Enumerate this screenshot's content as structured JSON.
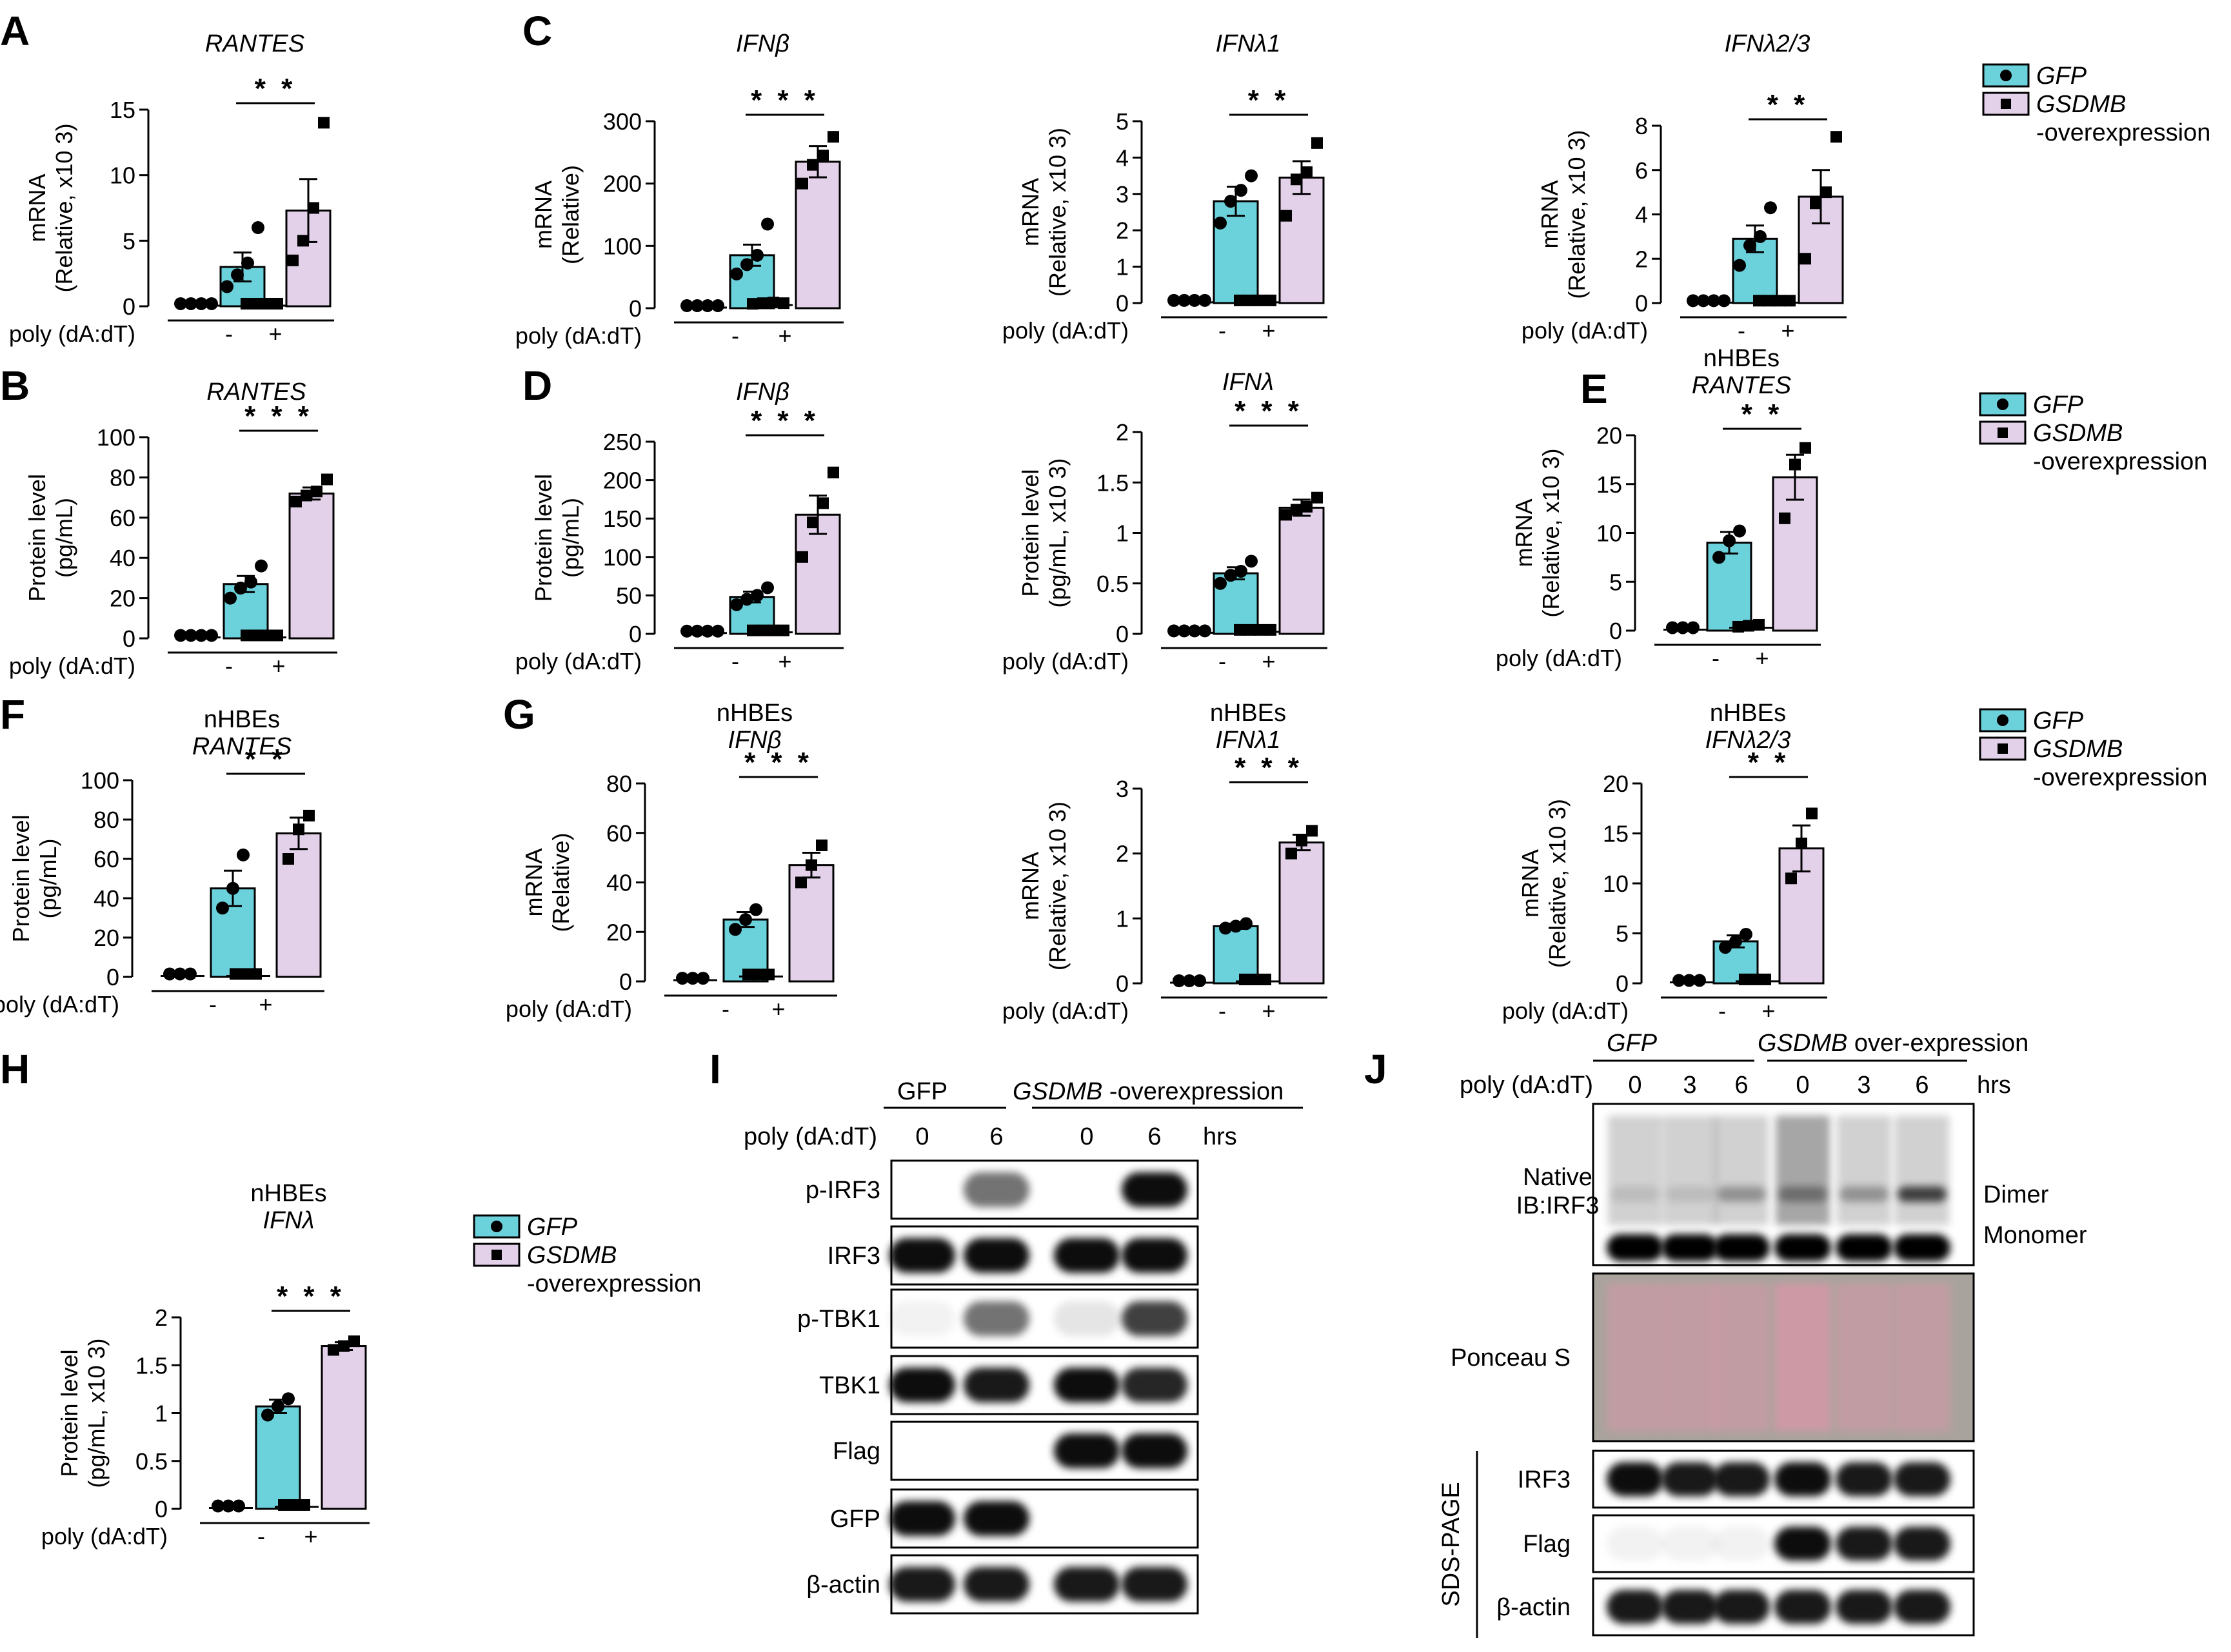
{
  "colors": {
    "gfp": "#6bd1db",
    "gsdmb": "#e3d1ea",
    "ponceau": "#d995a8"
  },
  "poly_label": "poly (dA:dT)",
  "legend": {
    "gfp": "GFP",
    "gsdmb": "GSDMB",
    "gsdmb_suffix": "-overexpression"
  },
  "chart_data": [
    {
      "id": "A",
      "type": "bar",
      "panel": "A",
      "title": "RANTES",
      "subtitle": "",
      "ylabel1": "mRNA",
      "ylabel2": "(Relative, x10 3)",
      "ylim": [
        0,
        15
      ],
      "yticks": [
        0,
        5,
        10,
        15
      ],
      "categories": [
        "-",
        "+"
      ],
      "series": [
        {
          "name": "GFP",
          "values": [
            0.05,
            3.0
          ],
          "err": [
            0,
            1.1
          ],
          "points": [
            [
              0.05,
              0.05,
              0.05,
              0.05
            ],
            [
              1.5,
              2.4,
              3.3,
              6.0
            ]
          ]
        },
        {
          "name": "GSDMB",
          "values": [
            0.05,
            7.3
          ],
          "err": [
            0,
            2.4
          ],
          "points": [
            [
              0.05,
              0.05,
              0.05,
              0.05
            ],
            [
              3.5,
              5.0,
              7.5,
              14.0
            ]
          ]
        }
      ],
      "sig": "* *"
    },
    {
      "id": "C1",
      "type": "bar",
      "panel": "C",
      "title": "IFNβ",
      "subtitle": "",
      "ylabel1": "mRNA",
      "ylabel2": "(Relative)",
      "ylim": [
        0,
        300
      ],
      "yticks": [
        0,
        100,
        200,
        300
      ],
      "categories": [
        "-",
        "+"
      ],
      "series": [
        {
          "name": "GFP",
          "values": [
            1,
            85
          ],
          "err": [
            0,
            17
          ],
          "points": [
            [
              1,
              1,
              1,
              1
            ],
            [
              55,
              70,
              85,
              135
            ]
          ]
        },
        {
          "name": "GSDMB",
          "values": [
            5,
            235
          ],
          "err": [
            1,
            25
          ],
          "points": [
            [
              4,
              5,
              6,
              5
            ],
            [
              200,
              230,
              245,
              275
            ]
          ]
        }
      ],
      "sig": "* * *"
    },
    {
      "id": "C2",
      "type": "bar",
      "panel": "",
      "title": "IFNλ1",
      "subtitle": "",
      "ylabel1": "mRNA",
      "ylabel2": "(Relative, x10 3)",
      "ylim": [
        0,
        5
      ],
      "yticks": [
        0,
        1,
        2,
        3,
        4,
        5
      ],
      "categories": [
        "-",
        "+"
      ],
      "series": [
        {
          "name": "GFP",
          "values": [
            0.02,
            2.8
          ],
          "err": [
            0,
            0.4
          ],
          "points": [
            [
              0.02,
              0.02,
              0.02,
              0.02
            ],
            [
              2.2,
              2.8,
              3.1,
              3.5
            ]
          ]
        },
        {
          "name": "GSDMB",
          "values": [
            0.02,
            3.45
          ],
          "err": [
            0,
            0.45
          ],
          "points": [
            [
              0.02,
              0.02,
              0.02,
              0.02
            ],
            [
              2.4,
              3.4,
              3.6,
              4.4
            ]
          ]
        }
      ],
      "sig": "* *"
    },
    {
      "id": "C3",
      "type": "bar",
      "panel": "",
      "title": "IFNλ2/3",
      "subtitle": "",
      "ylabel1": "mRNA",
      "ylabel2": "(Relative, x10 3)",
      "ylim": [
        0,
        8
      ],
      "yticks": [
        0,
        2,
        4,
        6,
        8
      ],
      "categories": [
        "-",
        "+"
      ],
      "series": [
        {
          "name": "GFP",
          "values": [
            0.02,
            2.9
          ],
          "err": [
            0,
            0.6
          ],
          "points": [
            [
              0.02,
              0.02,
              0.02,
              0.02
            ],
            [
              1.7,
              2.6,
              3.0,
              4.3
            ]
          ]
        },
        {
          "name": "GSDMB",
          "values": [
            0.02,
            4.8
          ],
          "err": [
            0,
            1.2
          ],
          "points": [
            [
              0.02,
              0.02,
              0.02,
              0.02
            ],
            [
              2.0,
              4.5,
              5.0,
              7.5
            ]
          ]
        }
      ],
      "sig": "* *"
    },
    {
      "id": "B",
      "type": "bar",
      "panel": "B",
      "title": "RANTES",
      "subtitle": "",
      "ylabel1": "Protein level",
      "ylabel2": "(pg/mL)",
      "ylim": [
        0,
        100
      ],
      "yticks": [
        0,
        20,
        40,
        60,
        80,
        100
      ],
      "categories": [
        "-",
        "+"
      ],
      "series": [
        {
          "name": "GFP",
          "values": [
            0.5,
            27
          ],
          "err": [
            0,
            4
          ],
          "points": [
            [
              0.5,
              0.5,
              0.5,
              0.5
            ],
            [
              20,
              25,
              28,
              36
            ]
          ]
        },
        {
          "name": "GSDMB",
          "values": [
            0.5,
            72
          ],
          "err": [
            0,
            3
          ],
          "points": [
            [
              0.5,
              0.5,
              0.5,
              0.5
            ],
            [
              68,
              71,
              73,
              79
            ]
          ]
        }
      ],
      "sig": "* * *"
    },
    {
      "id": "D1",
      "type": "bar",
      "panel": "D",
      "title": "IFNβ",
      "subtitle": "",
      "ylabel1": "Protein level",
      "ylabel2": "(pg/mL)",
      "ylim": [
        0,
        250
      ],
      "yticks": [
        0,
        50,
        100,
        150,
        200,
        250
      ],
      "categories": [
        "-",
        "+"
      ],
      "series": [
        {
          "name": "GFP",
          "values": [
            1,
            48
          ],
          "err": [
            0,
            7
          ],
          "points": [
            [
              1,
              1,
              1,
              1
            ],
            [
              38,
              45,
              50,
              60
            ]
          ]
        },
        {
          "name": "GSDMB",
          "values": [
            2,
            155
          ],
          "err": [
            0,
            25
          ],
          "points": [
            [
              2,
              2,
              2,
              2
            ],
            [
              100,
              145,
              170,
              210
            ]
          ]
        }
      ],
      "sig": "* * *"
    },
    {
      "id": "D2",
      "type": "bar",
      "panel": "",
      "title": "IFNλ",
      "subtitle": "",
      "ylabel1": "Protein level",
      "ylabel2": "(pg/mL, x10 3)",
      "ylim": [
        0,
        2.0
      ],
      "yticks": [
        0,
        0.5,
        1.0,
        1.5,
        2.0
      ],
      "categories": [
        "-",
        "+"
      ],
      "series": [
        {
          "name": "GFP",
          "values": [
            0.01,
            0.6
          ],
          "err": [
            0,
            0.06
          ],
          "points": [
            [
              0.01,
              0.01,
              0.01,
              0.01
            ],
            [
              0.5,
              0.58,
              0.62,
              0.72
            ]
          ]
        },
        {
          "name": "GSDMB",
          "values": [
            0.02,
            1.25
          ],
          "err": [
            0,
            0.08
          ],
          "points": [
            [
              0.02,
              0.02,
              0.02,
              0.02
            ],
            [
              1.18,
              1.23,
              1.26,
              1.35
            ]
          ]
        }
      ],
      "sig": "* * *"
    },
    {
      "id": "E",
      "type": "bar",
      "panel": "E",
      "title": "RANTES",
      "subtitle": "nHBEs",
      "ylabel1": "mRNA",
      "ylabel2": "(Relative, x10 3)",
      "ylim": [
        0,
        20
      ],
      "yticks": [
        0,
        5,
        10,
        15,
        20
      ],
      "categories": [
        "-",
        "+"
      ],
      "series": [
        {
          "name": "GFP",
          "values": [
            0.1,
            9
          ],
          "err": [
            0,
            1.1
          ],
          "points": [
            [
              0.1,
              0.1,
              0.1
            ],
            [
              7.5,
              9.2,
              10.2
            ]
          ]
        },
        {
          "name": "GSDMB",
          "values": [
            0.3,
            15.7
          ],
          "err": [
            0.1,
            2.3
          ],
          "points": [
            [
              0.2,
              0.3,
              0.4
            ],
            [
              11.5,
              17.0,
              18.7
            ]
          ]
        }
      ],
      "sig": "* *"
    },
    {
      "id": "F",
      "type": "bar",
      "panel": "F",
      "title": "RANTES",
      "subtitle": "nHBEs",
      "ylabel1": "Protein level",
      "ylabel2": "(pg/mL)",
      "ylim": [
        0,
        100
      ],
      "yticks": [
        0,
        20,
        40,
        60,
        80,
        100
      ],
      "categories": [
        "-",
        "+"
      ],
      "series": [
        {
          "name": "GFP",
          "values": [
            0.5,
            45
          ],
          "err": [
            0,
            9
          ],
          "points": [
            [
              0.5,
              0.5,
              0.5
            ],
            [
              35,
              45,
              62
            ]
          ]
        },
        {
          "name": "GSDMB",
          "values": [
            0.5,
            73
          ],
          "err": [
            0,
            8
          ],
          "points": [
            [
              0.5,
              0.5,
              0.5
            ],
            [
              60,
              75,
              82
            ]
          ]
        }
      ],
      "sig": "* *"
    },
    {
      "id": "G1",
      "type": "bar",
      "panel": "G",
      "title": "IFNβ",
      "subtitle": "nHBEs",
      "ylabel1": "mRNA",
      "ylabel2": "(Relative)",
      "ylim": [
        0,
        80
      ],
      "yticks": [
        0,
        20,
        40,
        60,
        80
      ],
      "categories": [
        "-",
        "+"
      ],
      "series": [
        {
          "name": "GFP",
          "values": [
            0.5,
            25
          ],
          "err": [
            0,
            3
          ],
          "points": [
            [
              0.5,
              0.5,
              0.5
            ],
            [
              21,
              25,
              29
            ]
          ]
        },
        {
          "name": "GSDMB",
          "values": [
            2,
            47
          ],
          "err": [
            0.5,
            5
          ],
          "points": [
            [
              2,
              2,
              2
            ],
            [
              40,
              47,
              55
            ]
          ]
        }
      ],
      "sig": "* * *"
    },
    {
      "id": "G2",
      "type": "bar",
      "panel": "",
      "title": "IFNλ1",
      "subtitle": "nHBEs",
      "ylabel1": "mRNA",
      "ylabel2": "(Relative, x10 3)",
      "ylim": [
        0,
        3
      ],
      "yticks": [
        0,
        1,
        2,
        3
      ],
      "categories": [
        "-",
        "+"
      ],
      "series": [
        {
          "name": "GFP",
          "values": [
            0.01,
            0.88
          ],
          "err": [
            0,
            0.04
          ],
          "points": [
            [
              0.01,
              0.01,
              0.01
            ],
            [
              0.85,
              0.88,
              0.92
            ]
          ]
        },
        {
          "name": "GSDMB",
          "values": [
            0.03,
            2.17
          ],
          "err": [
            0,
            0.12
          ],
          "points": [
            [
              0.03,
              0.03,
              0.03
            ],
            [
              2.0,
              2.2,
              2.35
            ]
          ]
        }
      ],
      "sig": "* * *"
    },
    {
      "id": "G3",
      "type": "bar",
      "panel": "",
      "title": "IFNλ2/3",
      "subtitle": "nHBEs",
      "ylabel1": "mRNA",
      "ylabel2": "(Relative, x10 3)",
      "ylim": [
        0,
        20
      ],
      "yticks": [
        0,
        5,
        10,
        15,
        20
      ],
      "categories": [
        "-",
        "+"
      ],
      "series": [
        {
          "name": "GFP",
          "values": [
            0.1,
            4.2
          ],
          "err": [
            0,
            0.6
          ],
          "points": [
            [
              0.1,
              0.1,
              0.1
            ],
            [
              3.6,
              4.2,
              4.9
            ]
          ]
        },
        {
          "name": "GSDMB",
          "values": [
            0.2,
            13.5
          ],
          "err": [
            0,
            2.3
          ],
          "points": [
            [
              0.2,
              0.2,
              0.2
            ],
            [
              10.5,
              14.0,
              17.0
            ]
          ]
        }
      ],
      "sig": "* *"
    },
    {
      "id": "H",
      "type": "bar",
      "panel": "H",
      "title": "IFNλ",
      "subtitle": "nHBEs",
      "ylabel1": "Protein level",
      "ylabel2": "(pg/mL, x10 3)",
      "ylim": [
        0,
        2.0
      ],
      "yticks": [
        0,
        0.5,
        1.0,
        1.5,
        2.0
      ],
      "categories": [
        "-",
        "+"
      ],
      "series": [
        {
          "name": "GFP",
          "values": [
            0.01,
            1.07
          ],
          "err": [
            0,
            0.07
          ],
          "points": [
            [
              0.01,
              0.01,
              0.01
            ],
            [
              0.98,
              1.07,
              1.15
            ]
          ]
        },
        {
          "name": "GSDMB",
          "values": [
            0.02,
            1.7
          ],
          "err": [
            0,
            0.04
          ],
          "points": [
            [
              0.02,
              0.02,
              0.02
            ],
            [
              1.66,
              1.7,
              1.75
            ]
          ]
        }
      ],
      "sig": "* * *"
    }
  ],
  "blot_i": {
    "panel": "I",
    "group_gfp": "GFP",
    "group_gsdmb": "GSDMB",
    "group_gsdmb_suffix": "-overexpression",
    "poly": "poly (dA:dT)",
    "times": [
      "0",
      "6",
      "0",
      "6"
    ],
    "unit": "hrs",
    "rows": [
      {
        "label": "p-IRF3",
        "bands": [
          0.0,
          0.55,
          0.0,
          0.95
        ]
      },
      {
        "label": "IRF3",
        "bands": [
          0.95,
          0.95,
          0.95,
          0.95
        ]
      },
      {
        "label": "p-TBK1",
        "bands": [
          0.05,
          0.55,
          0.1,
          0.75
        ]
      },
      {
        "label": "TBK1",
        "bands": [
          0.95,
          0.9,
          0.95,
          0.85
        ]
      },
      {
        "label": "Flag",
        "bands": [
          0.0,
          0.0,
          0.95,
          0.95
        ]
      },
      {
        "label": "GFP",
        "bands": [
          0.95,
          0.95,
          0.0,
          0.0
        ]
      },
      {
        "label": "β-actin",
        "bands": [
          0.9,
          0.9,
          0.9,
          0.9
        ]
      }
    ]
  },
  "blot_j": {
    "panel": "J",
    "group_gfp": "GFP",
    "group_gsdmb": "GSDMB",
    "group_gsdmb_suffix": "over-expression",
    "poly": "poly (dA:dT)",
    "times": [
      "0",
      "3",
      "6",
      "0",
      "3",
      "6"
    ],
    "unit": "hrs",
    "native_label1": "Native",
    "native_label2": "IB:IRF3",
    "dimer": "Dimer",
    "monomer": "Monomer",
    "ponceau": "Ponceau S",
    "sds": "SDS-PAGE",
    "rows": [
      {
        "label": "IRF3",
        "bands": [
          0.95,
          0.9,
          0.9,
          0.95,
          0.9,
          0.9
        ]
      },
      {
        "label": "Flag",
        "bands": [
          0.05,
          0.05,
          0.05,
          0.95,
          0.9,
          0.9
        ]
      },
      {
        "label": "β-actin",
        "bands": [
          0.9,
          0.9,
          0.9,
          0.9,
          0.9,
          0.9
        ]
      }
    ],
    "dimer_bands": [
      0.1,
      0.1,
      0.3,
      0.35,
      0.3,
      0.7
    ]
  }
}
